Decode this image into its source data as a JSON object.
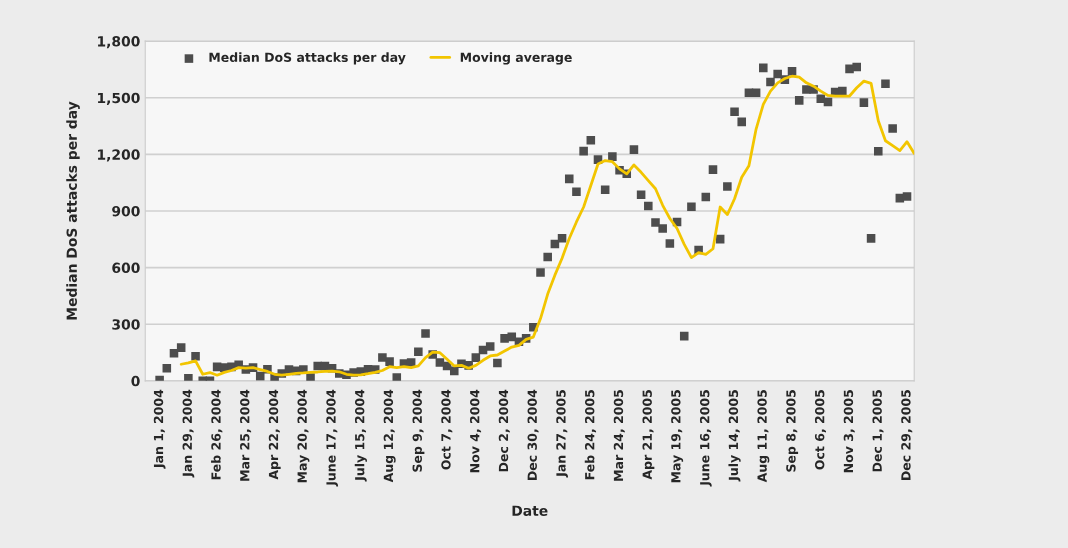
{
  "chart_data": {
    "type": "line",
    "xlabel": "Date",
    "ylabel": "Median DoS attacks per day",
    "categories": [
      "Jan 1, 2004",
      null,
      null,
      null,
      "Jan 29, 2004",
      null,
      null,
      null,
      "Feb 26, 2004",
      null,
      null,
      null,
      "Mar 25, 2004",
      null,
      null,
      null,
      "Apr 22, 2004",
      null,
      null,
      null,
      "May 20, 2004",
      null,
      null,
      null,
      "June 17, 2004",
      null,
      null,
      null,
      "July 15, 2004",
      null,
      null,
      null,
      "Aug 12, 2004",
      null,
      null,
      null,
      "Sep 9, 2004",
      null,
      null,
      null,
      "Oct 7, 2004",
      null,
      null,
      null,
      "Nov 4, 2004",
      null,
      null,
      null,
      "Dec 2, 2004",
      null,
      null,
      null,
      "Dec 30, 2004",
      null,
      null,
      null,
      "Jan 27, 2005",
      null,
      null,
      null,
      "Feb 24, 2005",
      null,
      null,
      null,
      "Mar 24, 2005",
      null,
      null,
      null,
      "Apr 21, 2005",
      null,
      null,
      null,
      "May 19, 2005",
      null,
      null,
      null,
      "June 16, 2005",
      null,
      null,
      null,
      "July 14, 2005",
      null,
      null,
      null,
      "Aug 11, 2005",
      null,
      null,
      null,
      "Sep 8, 2005",
      null,
      null,
      null,
      "Oct 6, 2005",
      null,
      null,
      null,
      "Nov 3, 2005",
      null,
      null,
      null,
      "Dec 1, 2005",
      null,
      null,
      null,
      "Dec 29, 2005",
      null
    ],
    "series": [
      {
        "name": "Median DoS attacks per day",
        "type": "scatter",
        "marker": "square",
        "color": "#4d4d4d",
        "values": [
          5,
          67,
          146,
          176,
          14,
          130,
          0,
          0,
          74,
          70,
          74,
          85,
          60,
          70,
          25,
          62,
          18,
          39,
          60,
          53,
          60,
          18,
          79,
          79,
          67,
          39,
          32,
          44,
          49,
          62,
          60,
          124,
          102,
          18,
          92,
          97,
          154,
          251,
          140,
          97,
          79,
          53,
          91,
          82,
          123,
          163,
          182,
          95,
          225,
          233,
          207,
          225,
          284,
          574,
          656,
          725,
          756,
          1070,
          1002,
          1217,
          1275,
          1172,
          1012,
          1188,
          1116,
          1097,
          1225,
          986,
          926,
          839,
          807,
          728,
          842,
          237,
          922,
          693,
          974,
          1119,
          751,
          1030,
          1426,
          1372,
          1526,
          1526,
          1658,
          1583,
          1626,
          1596,
          1640,
          1486,
          1544,
          1544,
          1495,
          1477,
          1530,
          1535,
          1653,
          1663,
          1474,
          755,
          1216,
          1574,
          1337,
          968,
          977,
          null
        ]
      },
      {
        "name": "Moving average",
        "marker": "none",
        "line_style": "solid",
        "color": "#f2c500",
        "values": [
          null,
          null,
          null,
          88,
          95,
          106,
          35,
          44,
          30,
          45,
          55,
          70,
          68,
          70,
          60,
          50,
          35,
          30,
          35,
          40,
          42,
          45,
          47,
          50,
          52,
          48,
          35,
          30,
          32,
          38,
          45,
          55,
          75,
          70,
          75,
          70,
          79,
          123,
          152,
          149,
          114,
          79,
          82,
          67,
          82,
          109,
          132,
          137,
          158,
          179,
          188,
          220,
          232,
          330,
          460,
          560,
          650,
          754,
          842,
          921,
          1035,
          1149,
          1167,
          1161,
          1123,
          1097,
          1144,
          1105,
          1061,
          1018,
          930,
          860,
          807,
          723,
          653,
          679,
          670,
          700,
          921,
          881,
          965,
          1079,
          1140,
          1334,
          1465,
          1535,
          1579,
          1602,
          1614,
          1609,
          1579,
          1561,
          1535,
          1512,
          1509,
          1509,
          1509,
          1553,
          1588,
          1576,
          1378,
          1272,
          1246,
          1220,
          1267,
          1205
        ]
      }
    ],
    "ylim": [
      0,
      1800
    ],
    "yticks": [
      0,
      300,
      600,
      900,
      {
        "value": 1200,
        "label": "1,200"
      },
      {
        "value": 1500,
        "label": "1,500"
      },
      {
        "value": 1800,
        "label": "1,800"
      }
    ],
    "grid": "y",
    "legend": "top left"
  }
}
